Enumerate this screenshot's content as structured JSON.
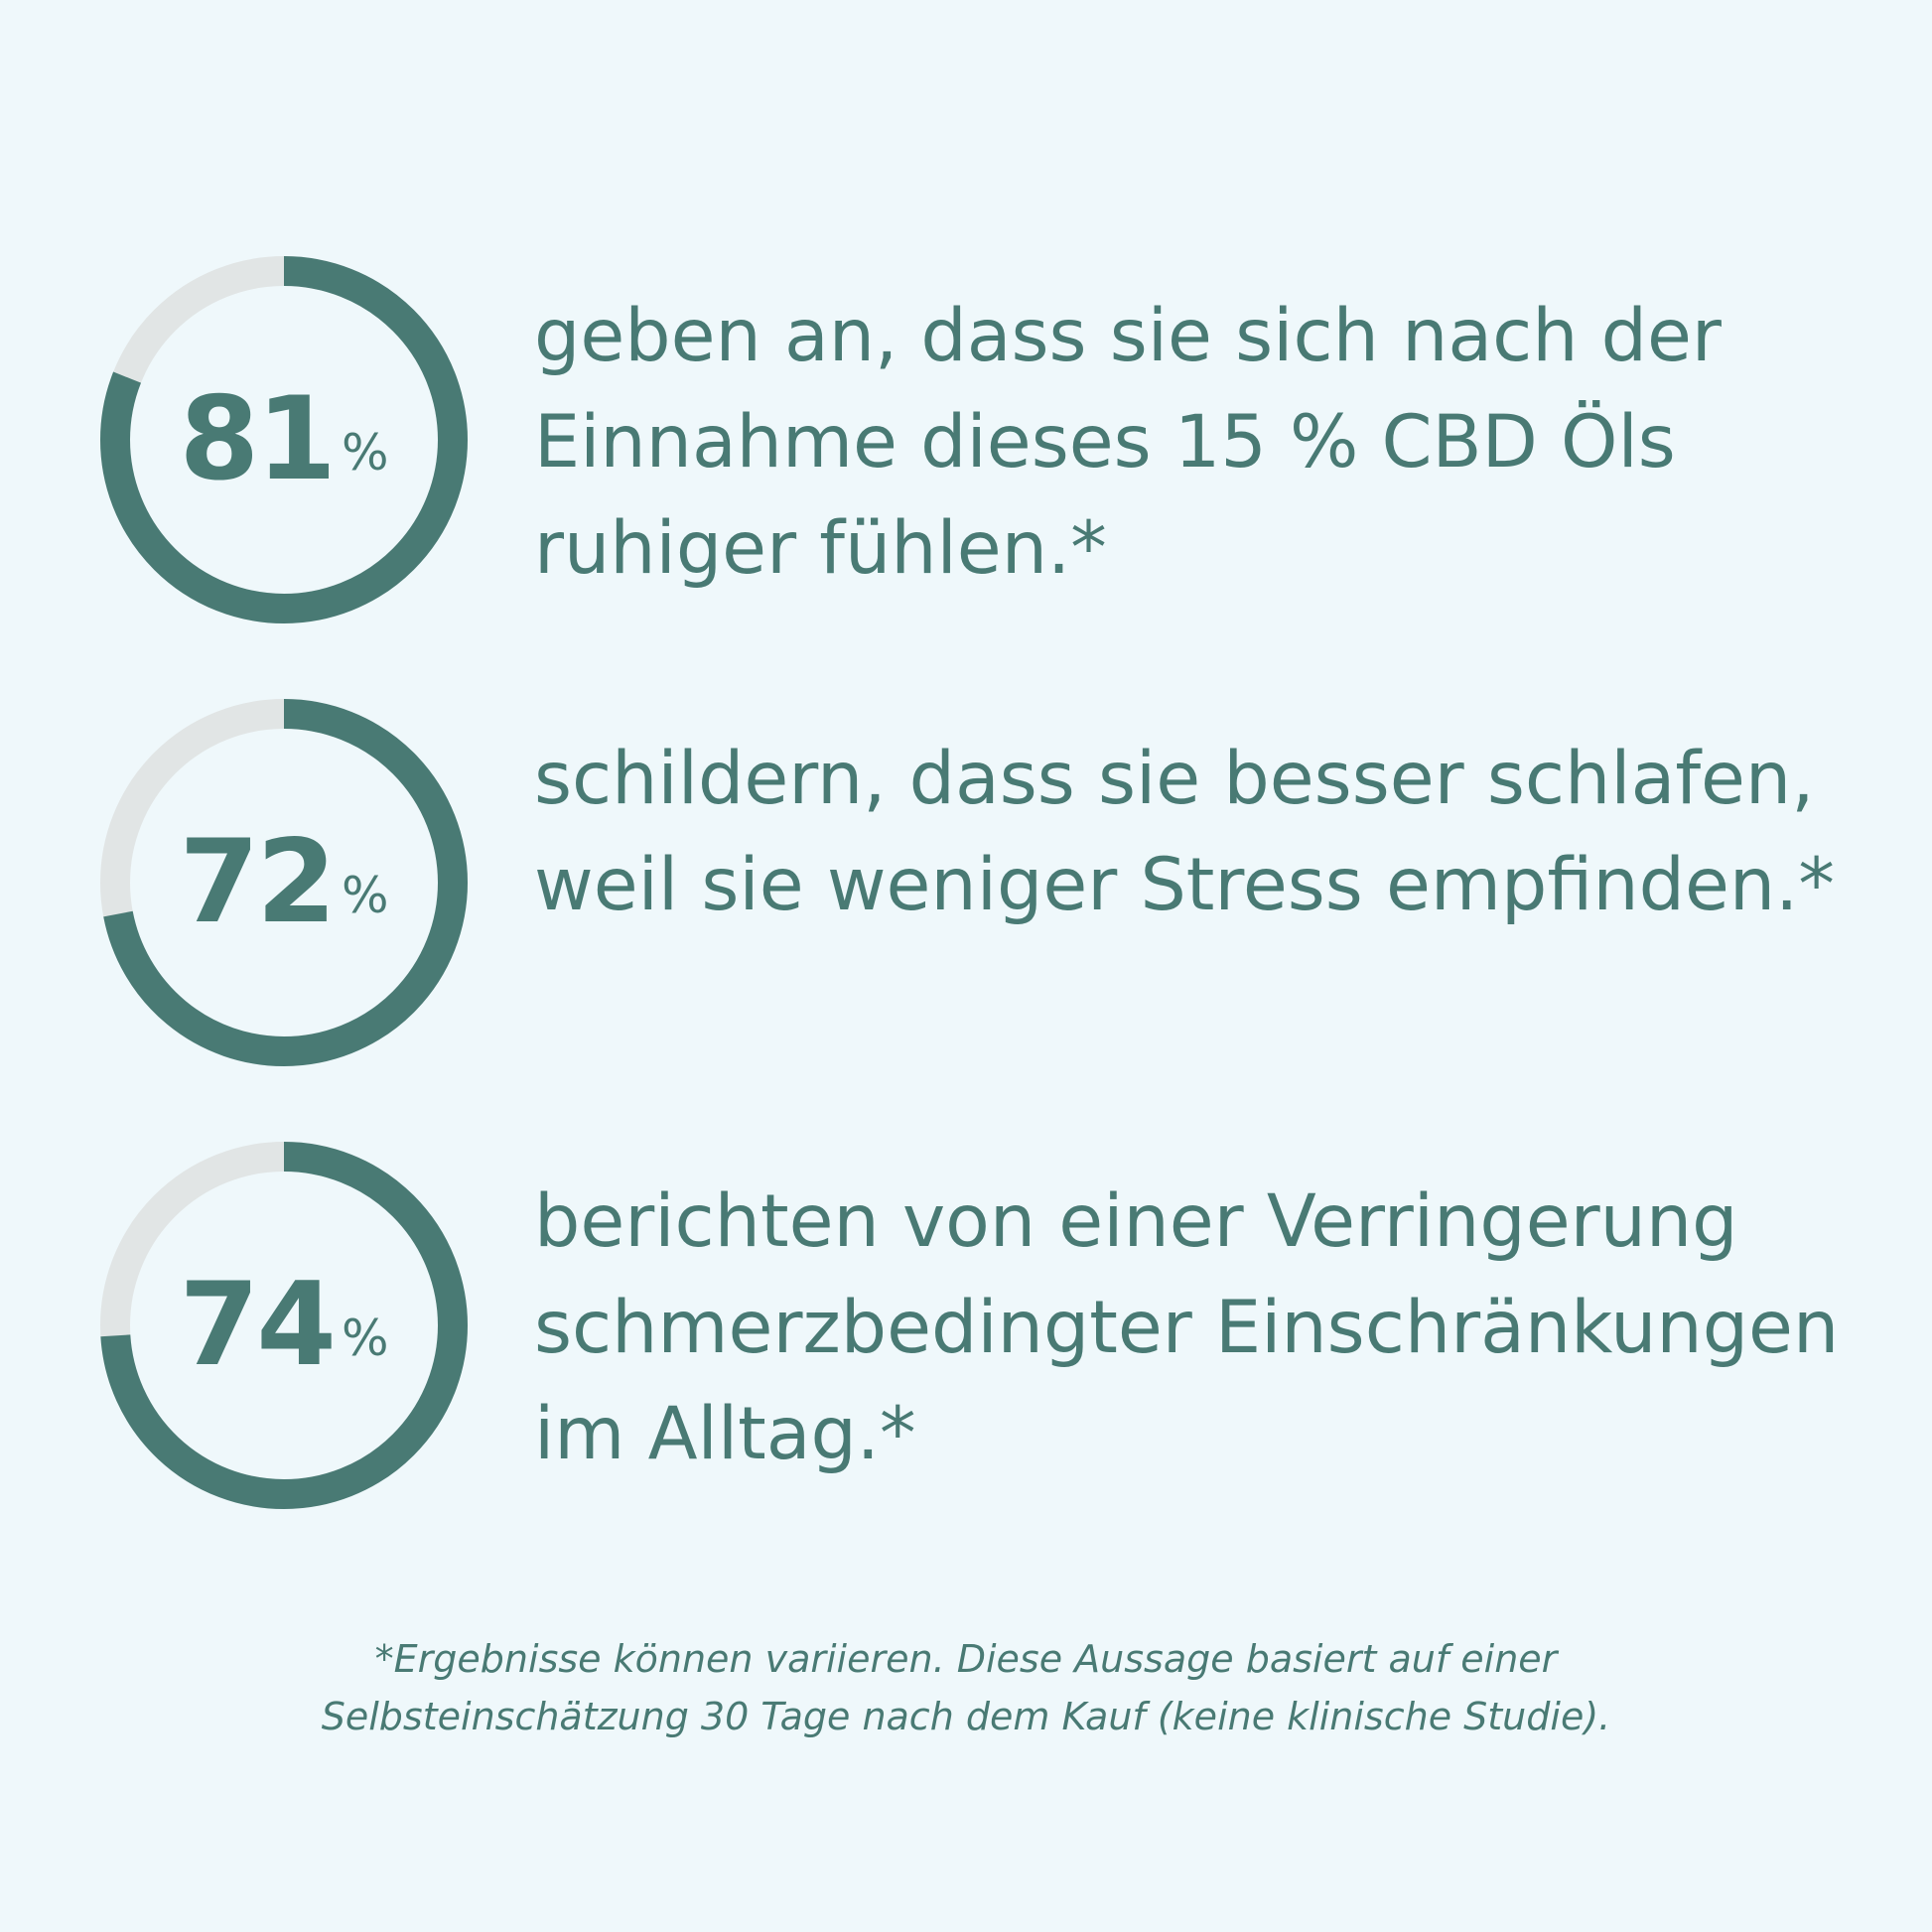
{
  "colors": {
    "background": "#eff8fb",
    "accent": "#497a74",
    "ring_track": "#e1e5e5"
  },
  "chart_data": [
    {
      "type": "pie",
      "value": 81,
      "max": 100,
      "label": "81",
      "unit": "%",
      "text": "geben an, dass sie sich nach der Einnahme dieses 15 % CBD Öls ruhiger fühlen.*"
    },
    {
      "type": "pie",
      "value": 72,
      "max": 100,
      "label": "72",
      "unit": "%",
      "text": "schildern, dass sie besser schlafen, weil sie weniger Stress empfinden.*"
    },
    {
      "type": "pie",
      "value": 74,
      "max": 100,
      "label": "74",
      "unit": "%",
      "text": "berichten von einer Verringerung schmerzbedingter Einschränkungen im Alltag.*"
    }
  ],
  "footnote": {
    "line1": "*Ergebnisse können variieren. Diese Aussage basiert auf einer",
    "line2": "Selbsteinschätzung 30 Tage nach dem Kauf (keine klinische Studie)."
  }
}
